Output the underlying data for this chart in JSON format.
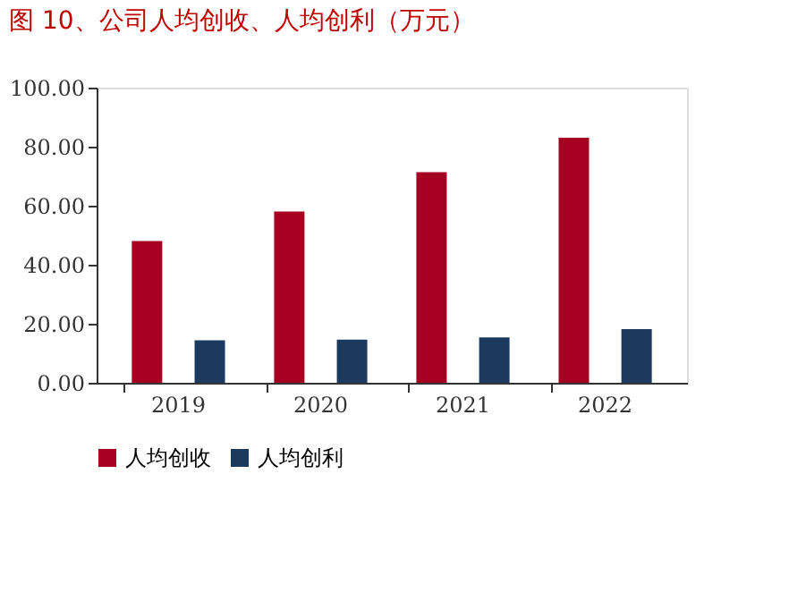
{
  "chart_data": {
    "type": "bar",
    "title": "图 10、公司人均创收、人均创利（万元）",
    "categories": [
      "2019",
      "2020",
      "2021",
      "2022"
    ],
    "series": [
      {
        "name": "人均创收",
        "color": "#a50021",
        "values": [
          48.0,
          58.0,
          71.4,
          83.0
        ]
      },
      {
        "name": "人均创利",
        "color": "#1b3a5e",
        "values": [
          14.4,
          14.6,
          15.4,
          18.2
        ]
      }
    ],
    "ylim": [
      0,
      100
    ],
    "yticks": [
      {
        "value": 0,
        "label": "0.00"
      },
      {
        "value": 20,
        "label": "20.00"
      },
      {
        "value": 40,
        "label": "40.00"
      },
      {
        "value": 60,
        "label": "60.00"
      },
      {
        "value": 80,
        "label": "80.00"
      },
      {
        "value": 100,
        "label": "100.00"
      }
    ],
    "grid": false,
    "legend": "bottom"
  }
}
